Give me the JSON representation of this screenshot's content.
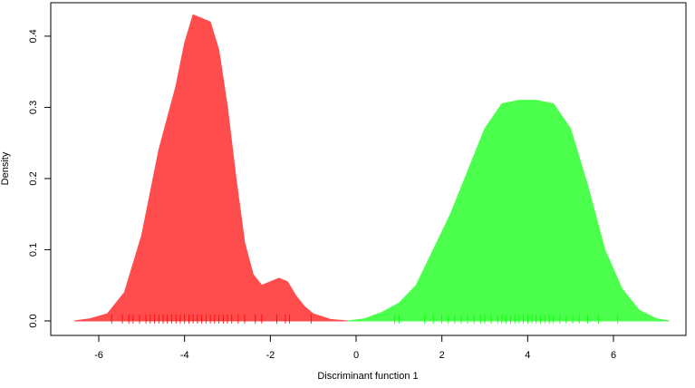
{
  "chart_data": {
    "type": "density",
    "xlabel": "Discriminant function 1",
    "ylabel": "Density",
    "xlim": [
      -7.12,
      7.69
    ],
    "ylim": [
      -0.0204,
      0.447
    ],
    "xticks": [
      -6,
      -4,
      -2,
      0,
      2,
      4,
      6
    ],
    "yticks": [
      {
        "value": 0,
        "label": "0.0"
      },
      0.1,
      0.2,
      0.3,
      0.4
    ],
    "series": [
      {
        "color": "#ff4c4c",
        "rug_color": "#ff0000",
        "x": [
          -6.57,
          -6.2,
          -5.8,
          -5.4,
          -5.0,
          -4.6,
          -4.2,
          -4.0,
          -3.8,
          -3.6,
          -3.4,
          -3.2,
          -3.0,
          -2.8,
          -2.6,
          -2.4,
          -2.2,
          -2.0,
          -1.8,
          -1.6,
          -1.4,
          -1.2,
          -1.0,
          -0.6,
          -0.2
        ],
        "values": [
          0,
          0.003,
          0.01,
          0.04,
          0.12,
          0.24,
          0.33,
          0.39,
          0.43,
          0.425,
          0.42,
          0.38,
          0.3,
          0.2,
          0.11,
          0.065,
          0.05,
          0.055,
          0.06,
          0.055,
          0.035,
          0.02,
          0.01,
          0.002,
          0
        ],
        "rug": [
          -5.7,
          -5.45,
          -5.3,
          -5.2,
          -5.05,
          -4.9,
          -4.8,
          -4.7,
          -4.6,
          -4.5,
          -4.4,
          -4.3,
          -4.2,
          -4.1,
          -4.0,
          -3.9,
          -3.8,
          -3.7,
          -3.6,
          -3.5,
          -3.4,
          -3.3,
          -3.2,
          -3.1,
          -3.0,
          -2.9,
          -2.75,
          -2.6,
          -2.35,
          -2.2,
          -1.85,
          -1.65,
          -1.55,
          -1.05
        ]
      },
      {
        "color": "#4cff4c",
        "rug_color": "#00ff00",
        "x": [
          -0.2,
          0.2,
          0.6,
          1.0,
          1.4,
          1.8,
          2.2,
          2.6,
          3.0,
          3.4,
          3.8,
          4.2,
          4.6,
          5.0,
          5.4,
          5.8,
          6.2,
          6.6,
          7.0,
          7.3
        ],
        "values": [
          0,
          0.003,
          0.012,
          0.025,
          0.05,
          0.1,
          0.15,
          0.21,
          0.27,
          0.305,
          0.31,
          0.31,
          0.305,
          0.27,
          0.19,
          0.1,
          0.045,
          0.015,
          0.003,
          0
        ],
        "rug": [
          0.9,
          1.0,
          1.6,
          1.8,
          2.0,
          2.15,
          2.3,
          2.45,
          2.6,
          2.75,
          2.9,
          3.0,
          3.15,
          3.3,
          3.4,
          3.5,
          3.6,
          3.7,
          3.8,
          3.9,
          4.0,
          4.1,
          4.2,
          4.3,
          4.4,
          4.5,
          4.6,
          4.75,
          4.9,
          5.05,
          5.2,
          5.4,
          5.65,
          6.1
        ]
      }
    ]
  }
}
